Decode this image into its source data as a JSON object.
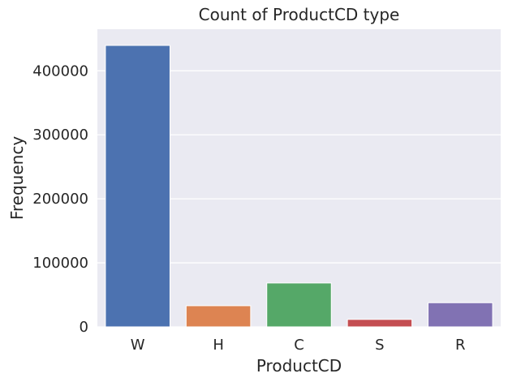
{
  "chart_data": {
    "type": "bar",
    "title": "Count of ProductCD type",
    "xlabel": "ProductCD",
    "ylabel": "Frequency",
    "categories": [
      "W",
      "H",
      "C",
      "S",
      "R"
    ],
    "values": [
      439670,
      33024,
      68519,
      11628,
      37699
    ],
    "colors": [
      "#4c72b0",
      "#dd8452",
      "#55a868",
      "#c44e52",
      "#8172b3"
    ],
    "ylim": [
      0,
      465000
    ],
    "yticks": [
      0,
      100000,
      200000,
      300000,
      400000
    ],
    "ytick_labels": [
      "0",
      "100000",
      "200000",
      "300000",
      "400000"
    ],
    "grid": true,
    "background": "#eaeaf2"
  }
}
